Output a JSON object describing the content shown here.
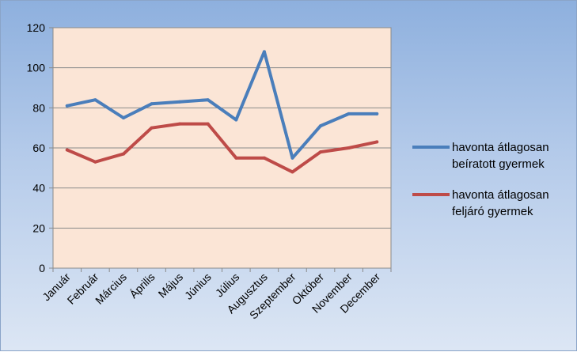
{
  "chart_data": {
    "type": "line",
    "categories": [
      "Január",
      "Február",
      "Március",
      "Április",
      "Május",
      "Június",
      "Július",
      "Augusztus",
      "Szeptember",
      "Október",
      "November",
      "December"
    ],
    "series": [
      {
        "name": "havonta átlagosan beíratott gyermek",
        "name_lines": [
          "havonta átlagosan",
          "beíratott gyermek"
        ],
        "color": "#4a7ebb",
        "values": [
          81,
          84,
          75,
          82,
          83,
          84,
          74,
          108,
          55,
          71,
          77,
          77
        ]
      },
      {
        "name": "havonta átlagosan feljáró gyermek",
        "name_lines": [
          "havonta átlagosan",
          "feljáró gyermek"
        ],
        "color": "#be4b48",
        "values": [
          59,
          53,
          57,
          70,
          72,
          72,
          55,
          55,
          48,
          58,
          60,
          63
        ]
      }
    ],
    "ylim": [
      0,
      120
    ],
    "yticks": [
      0,
      20,
      40,
      60,
      80,
      100,
      120
    ],
    "grid": true,
    "legend_position": "right",
    "plot_background": "#fbe5d6"
  }
}
